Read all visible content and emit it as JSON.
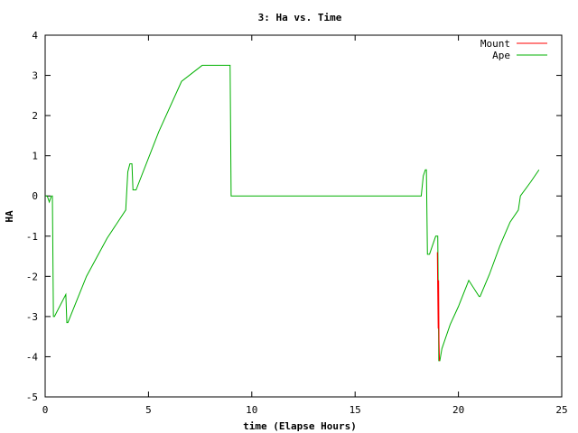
{
  "chart_data": {
    "type": "line",
    "title": "3: Ha vs. Time",
    "xlabel": "time (Elapse Hours)",
    "ylabel": "HA",
    "xlim": [
      0,
      25
    ],
    "ylim": [
      -5,
      4
    ],
    "xticks": [
      0,
      5,
      10,
      15,
      20,
      25
    ],
    "yticks": [
      -5,
      -4,
      -3,
      -2,
      -1,
      0,
      1,
      2,
      3,
      4
    ],
    "grid": false,
    "legend_position": "top-right",
    "series": [
      {
        "name": "Mount",
        "color": "#ff0000",
        "x": [
          18.98,
          19.0,
          19.02,
          19.04,
          19.06,
          19.08
        ],
        "y": [
          -1.4,
          -2.4,
          -3.3,
          -2.1,
          -3.6,
          -4.1
        ]
      },
      {
        "name": "Ape",
        "color": "#00b000",
        "x": [
          0.0,
          0.1,
          0.2,
          0.3,
          0.35,
          0.4,
          0.45,
          1.0,
          1.05,
          1.1,
          2.0,
          3.0,
          3.9,
          4.0,
          4.1,
          4.2,
          4.25,
          4.3,
          4.4,
          5.5,
          6.6,
          7.6,
          8.95,
          9.0,
          9.1,
          18.2,
          18.3,
          18.4,
          18.45,
          18.5,
          18.6,
          18.9,
          19.0,
          19.05,
          19.1,
          19.2,
          19.6,
          20.0,
          20.5,
          21.0,
          21.05,
          21.5,
          22.0,
          22.5,
          22.9,
          23.0,
          23.5,
          23.9
        ],
        "y": [
          0.0,
          0.0,
          -0.15,
          0.0,
          0.0,
          -3.0,
          -3.0,
          -2.45,
          -3.15,
          -3.15,
          -2.0,
          -1.05,
          -0.35,
          0.6,
          0.8,
          0.8,
          0.15,
          0.15,
          0.15,
          1.6,
          2.85,
          3.25,
          3.25,
          0.0,
          0.0,
          0.0,
          0.5,
          0.65,
          0.65,
          -1.45,
          -1.45,
          -1.0,
          -1.0,
          -4.1,
          -4.1,
          -3.8,
          -3.2,
          -2.75,
          -2.1,
          -2.5,
          -2.5,
          -1.95,
          -1.25,
          -0.65,
          -0.35,
          0.0,
          0.35,
          0.65
        ]
      }
    ]
  }
}
